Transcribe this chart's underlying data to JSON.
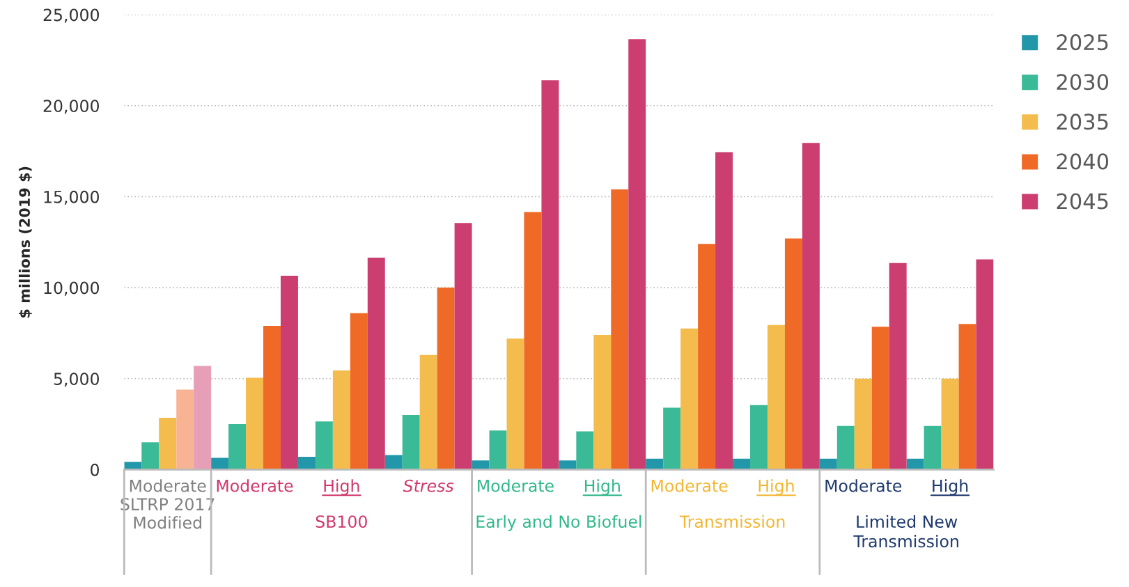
{
  "chart_data": {
    "type": "bar",
    "ylabel": "$ millions (2019 $)",
    "categories": [
      "Moderate\nSLTRP 2017\nModified",
      "Moderate",
      "High",
      "Stress",
      "Moderate",
      "High",
      "Moderate",
      "High",
      "Moderate",
      "High"
    ],
    "annotations": [
      "SB100",
      "Early and No Biofuel",
      "Transmission",
      "Limited New\nTransmission"
    ],
    "series": [
      {
        "name": "2025",
        "color": "#2397aa",
        "values": [
          430,
          650,
          700,
          800,
          500,
          500,
          600,
          600,
          600,
          600
        ]
      },
      {
        "name": "2030",
        "color": "#3aba96",
        "values": [
          1500,
          2500,
          2650,
          3000,
          2150,
          2100,
          3400,
          3550,
          2400,
          2400
        ]
      },
      {
        "name": "2035",
        "color": "#f3bc4c",
        "values": [
          2850,
          5050,
          5450,
          6300,
          7200,
          7400,
          7750,
          7950,
          5000,
          5000
        ]
      },
      {
        "name": "2040",
        "color": "#f06a27",
        "colors": [
          "#f7b394",
          "#f06a27",
          "#f06a27",
          "#f06a27",
          "#f06a27",
          "#f06a27",
          "#f06a27",
          "#f06a27",
          "#f06a27",
          "#f06a27"
        ],
        "values": [
          4400,
          7900,
          8600,
          10000,
          14150,
          15400,
          12400,
          12700,
          7850,
          8000
        ]
      },
      {
        "name": "2045",
        "color": "#cc3e6f",
        "colors": [
          "#e69fb7",
          "#cc3e6f",
          "#cc3e6f",
          "#cc3e6f",
          "#cc3e6f",
          "#cc3e6f",
          "#cc3e6f",
          "#cc3e6f",
          "#cc3e6f",
          "#cc3e6f"
        ],
        "values": [
          5700,
          10650,
          11650,
          13550,
          21400,
          23650,
          17450,
          17950,
          11350,
          11550
        ]
      }
    ],
    "ylim": [
      0,
      25000
    ],
    "yticks": [
      0,
      {
        "value": 5000,
        "label": "5,000"
      },
      {
        "value": 10000,
        "label": "10,000"
      },
      {
        "value": 15000,
        "label": "15,000"
      },
      {
        "value": 20000,
        "label": "20,000"
      },
      {
        "value": 25000,
        "label": "25,000"
      }
    ],
    "grid": "y",
    "legend": "top right"
  }
}
